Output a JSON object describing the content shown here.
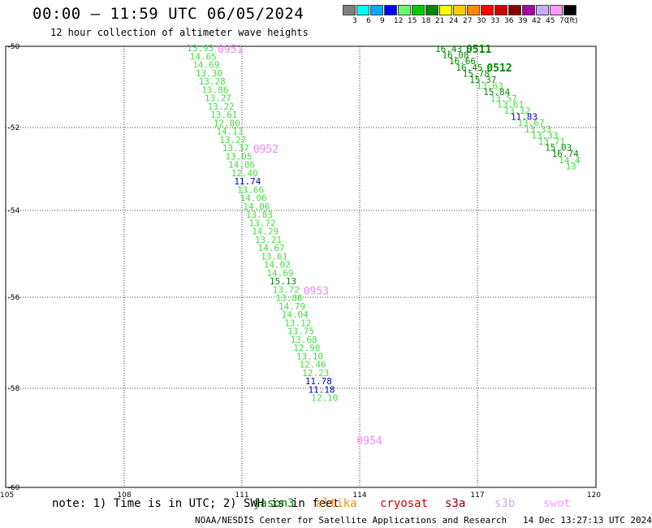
{
  "header": {
    "title": "00:00 — 11:59 UTC 06/05/2024",
    "subtitle": "12 hour collection of altimeter wave heights"
  },
  "legend": {
    "unit": "(ft)",
    "bins": [
      {
        "label": "3",
        "color": "#808080"
      },
      {
        "label": "6",
        "color": "#00ffff"
      },
      {
        "label": "9",
        "color": "#00aaff"
      },
      {
        "label": "12",
        "color": "#0000ff"
      },
      {
        "label": "15",
        "color": "#66ff66"
      },
      {
        "label": "18",
        "color": "#00cc00"
      },
      {
        "label": "21",
        "color": "#008800"
      },
      {
        "label": "24",
        "color": "#ffff00"
      },
      {
        "label": "27",
        "color": "#ffcc00"
      },
      {
        "label": "30",
        "color": "#ff8800"
      },
      {
        "label": "33",
        "color": "#ff0000"
      },
      {
        "label": "36",
        "color": "#cc0000"
      },
      {
        "label": "39",
        "color": "#880000"
      },
      {
        "label": "42",
        "color": "#aa00aa"
      },
      {
        "label": "45",
        "color": "#ccaaff"
      },
      {
        "label": "70",
        "color": "#ff99ff"
      },
      {
        "label": "",
        "color": "#000000"
      }
    ]
  },
  "map": {
    "lat_labels": [
      "-50",
      "-52",
      "-54",
      "-56",
      "-58",
      "-60"
    ],
    "lon_labels": [
      "105",
      "108",
      "111",
      "114",
      "117",
      "120"
    ],
    "colors": {
      "light_green": "#44dd44",
      "dark_green": "#008800",
      "blue": "#0000cc",
      "time_label": "#ee88ee"
    },
    "tracks": [
      {
        "time_labels": [
          {
            "text": "0951",
            "after_index": 0
          },
          {
            "text": "0952",
            "after_index": 12
          },
          {
            "text": "0953",
            "after_index": 29
          },
          {
            "text": "0954",
            "after_index": 47
          }
        ],
        "points": [
          {
            "v": "13.93",
            "c": "lg"
          },
          {
            "v": "14.65",
            "c": "lg"
          },
          {
            "v": "14.69",
            "c": "lg"
          },
          {
            "v": "13.30",
            "c": "lg"
          },
          {
            "v": "13.28",
            "c": "lg"
          },
          {
            "v": "13.86",
            "c": "lg"
          },
          {
            "v": "13.27",
            "c": "lg"
          },
          {
            "v": "13.22",
            "c": "lg"
          },
          {
            "v": "13.61",
            "c": "lg"
          },
          {
            "v": "12.80",
            "c": "lg"
          },
          {
            "v": "14.13",
            "c": "lg"
          },
          {
            "v": "13.27",
            "c": "lg"
          },
          {
            "v": "13.37",
            "c": "lg"
          },
          {
            "v": "13.05",
            "c": "lg"
          },
          {
            "v": "14.06",
            "c": "lg"
          },
          {
            "v": "12.40",
            "c": "lg"
          },
          {
            "v": "11.74",
            "c": "b"
          },
          {
            "v": "13.66",
            "c": "lg"
          },
          {
            "v": "14.06",
            "c": "lg"
          },
          {
            "v": "14.06",
            "c": "lg"
          },
          {
            "v": "13.83",
            "c": "lg"
          },
          {
            "v": "13.72",
            "c": "lg"
          },
          {
            "v": "14.29",
            "c": "lg"
          },
          {
            "v": "13.21",
            "c": "lg"
          },
          {
            "v": "14.67",
            "c": "lg"
          },
          {
            "v": "13.61",
            "c": "lg"
          },
          {
            "v": "14.02",
            "c": "lg"
          },
          {
            "v": "14.69",
            "c": "lg"
          },
          {
            "v": "15.13",
            "c": "dg"
          },
          {
            "v": "13.72",
            "c": "lg"
          },
          {
            "v": "13.88",
            "c": "lg"
          },
          {
            "v": "14.79",
            "c": "lg"
          },
          {
            "v": "14.04",
            "c": "lg"
          },
          {
            "v": "13.12",
            "c": "lg"
          },
          {
            "v": "13.75",
            "c": "lg"
          },
          {
            "v": "13.68",
            "c": "lg"
          },
          {
            "v": "12.90",
            "c": "lg"
          },
          {
            "v": "13.10",
            "c": "lg"
          },
          {
            "v": "12.46",
            "c": "lg"
          },
          {
            "v": "12.23",
            "c": "lg"
          },
          {
            "v": "11.78",
            "c": "b"
          },
          {
            "v": "11.18",
            "c": "b"
          },
          {
            "v": "12.10",
            "c": "lg"
          }
        ]
      },
      {
        "time_labels": [
          {
            "text": "0511",
            "after_index": 0
          },
          {
            "text": "0512",
            "after_index": 3
          }
        ],
        "points": [
          {
            "v": "16.43",
            "c": "dg"
          },
          {
            "v": "16.08",
            "c": "dg"
          },
          {
            "v": "16.66",
            "c": "dg"
          },
          {
            "v": "16.45",
            "c": "dg"
          },
          {
            "v": "15.78",
            "c": "dg"
          },
          {
            "v": "15.37",
            "c": "dg"
          },
          {
            "v": "13.63",
            "c": "lg"
          },
          {
            "v": "15.84",
            "c": "dg"
          },
          {
            "v": "13.57",
            "c": "lg"
          },
          {
            "v": "13.61",
            "c": "lg"
          },
          {
            "v": "13.12",
            "c": "lg"
          },
          {
            "v": "11.83",
            "c": "b"
          },
          {
            "v": "13.67",
            "c": "lg"
          },
          {
            "v": "13.33",
            "c": "lg"
          },
          {
            "v": "13.33",
            "c": "lg"
          },
          {
            "v": "13.71",
            "c": "lg"
          },
          {
            "v": "15.03",
            "c": "dg"
          },
          {
            "v": "16.74",
            "c": "dg"
          },
          {
            "v": "14.4",
            "c": "lg"
          },
          {
            "v": "13",
            "c": "lg"
          }
        ]
      }
    ]
  },
  "footer": {
    "note": "note: 1) Time is in UTC; 2) SWH is in feet",
    "satellites": [
      {
        "name": "jason3",
        "color": "#008800"
      },
      {
        "name": "altika",
        "color": "#ff8800"
      },
      {
        "name": "cryosat",
        "color": "#cc0000"
      },
      {
        "name": "s3a",
        "color": "#880000"
      },
      {
        "name": "s3b",
        "color": "#ccaaff"
      },
      {
        "name": "swot",
        "color": "#ff99ff"
      }
    ],
    "credit": "NOAA/NESDIS Center for Satellite Applications and Research",
    "generated": "14 Dec 13:27:13 UTC 2024"
  }
}
